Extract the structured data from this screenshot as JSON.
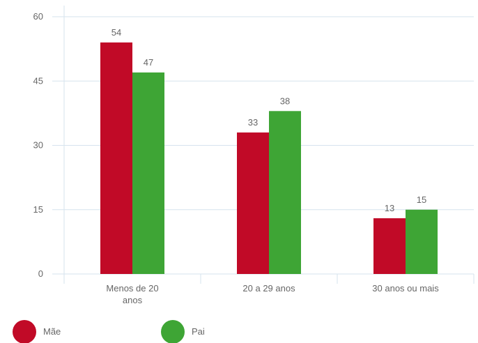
{
  "chart_data": {
    "type": "bar",
    "categories": [
      "Menos de 20 anos",
      "20 a 29 anos",
      "30 anos ou mais"
    ],
    "series": [
      {
        "name": "Mãe",
        "color": "#c10a27",
        "values": [
          54,
          33,
          13
        ]
      },
      {
        "name": "Pai",
        "color": "#3ea535",
        "values": [
          47,
          38,
          15
        ]
      }
    ],
    "ylim": [
      0,
      60
    ],
    "yticks": [
      0,
      15,
      30,
      45,
      60
    ],
    "grid": true,
    "legend": "bottom-left"
  }
}
